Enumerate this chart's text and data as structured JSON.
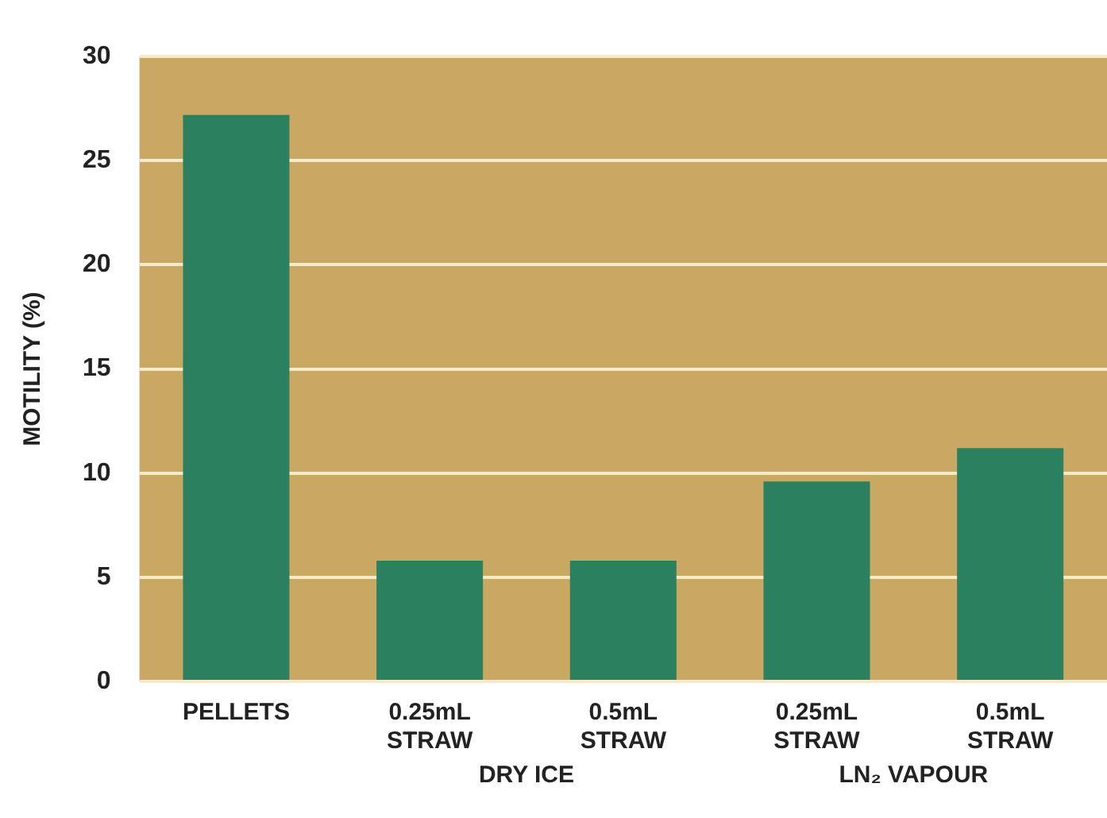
{
  "chart_data": {
    "type": "bar",
    "ylabel": "MOTILITY (%)",
    "categories": [
      "PELLETS",
      "0.25mL STRAW",
      "0.5mL STRAW",
      "0.25mL STRAW",
      "0.5mL STRAW"
    ],
    "values": [
      27.2,
      5.8,
      5.8,
      9.6,
      11.2
    ],
    "color": "#2b8060",
    "ylim": [
      0,
      30
    ],
    "yticks": [
      0,
      5,
      10,
      15,
      20,
      25,
      30
    ],
    "grid": "y",
    "annotations": [
      "DRY ICE",
      "LN₂ VAPOUR"
    ]
  }
}
